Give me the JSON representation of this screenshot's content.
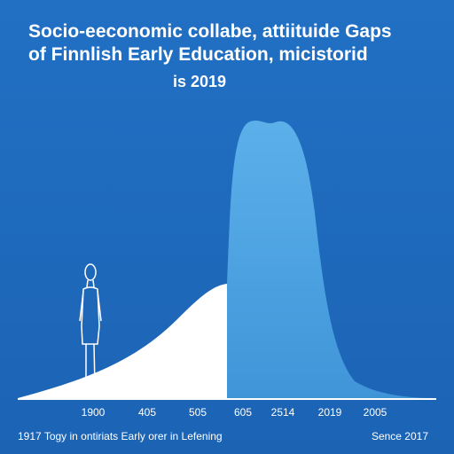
{
  "header": {
    "title_lines": [
      "Socio-eeconomic collabe, attiituide Gaps",
      "of Finnlish Early Education, micistorid"
    ],
    "subtitle": "is 2019"
  },
  "axis": {
    "labels": [
      "1900",
      "405",
      "505",
      "605",
      "2514",
      "2019",
      "2005"
    ]
  },
  "footer": {
    "left": "1917 Togy in ontiriats Early orer in Lefening",
    "right": "Sence 2017"
  }
}
